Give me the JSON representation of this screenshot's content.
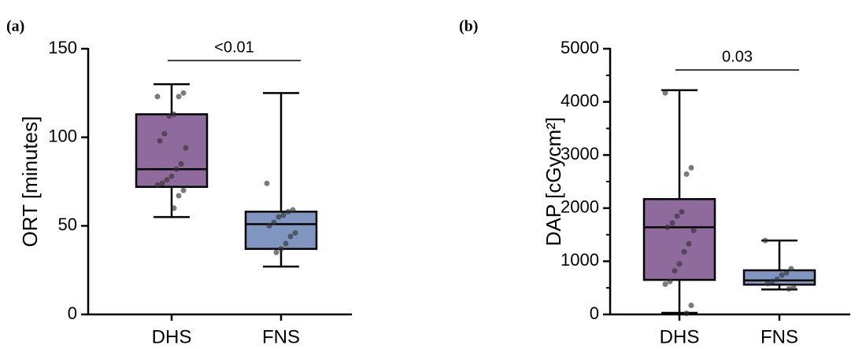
{
  "chart_data": [
    {
      "type": "box",
      "panel_label": "(a)",
      "ylabel": "ORT [minutes]",
      "annotation": "<0.01",
      "categories": [
        "DHS",
        "FNS"
      ],
      "boxes": [
        {
          "color": "#8f6a9c",
          "min": 55,
          "q1": 72,
          "median": 82,
          "q3": 113,
          "max": 130,
          "points": [
            123,
            125,
            123,
            113,
            112,
            102,
            98,
            94,
            85,
            82,
            78,
            76,
            74,
            73,
            70,
            67,
            60
          ]
        },
        {
          "color": "#7f97c0",
          "min": 27,
          "q1": 37,
          "median": 51,
          "q3": 58,
          "max": 125,
          "points": [
            74,
            59,
            58,
            56,
            55,
            52,
            50,
            46,
            44,
            40,
            37,
            35
          ]
        }
      ],
      "ylim": [
        0,
        150
      ],
      "yticks": [
        0,
        50,
        100,
        150
      ]
    },
    {
      "type": "box",
      "panel_label": "(b)",
      "ylabel": "DAP [cGycm²]",
      "annotation": "0.03",
      "categories": [
        "DHS",
        "FNS"
      ],
      "boxes": [
        {
          "color": "#8f6a9c",
          "min": 30,
          "q1": 650,
          "median": 1640,
          "q3": 2170,
          "max": 4220,
          "points": [
            4170,
            2760,
            2640,
            1930,
            1850,
            1720,
            1640,
            1580,
            1330,
            1180,
            950,
            820,
            620,
            570,
            170,
            20
          ]
        },
        {
          "color": "#7f97c0",
          "min": 470,
          "q1": 560,
          "median": 640,
          "q3": 830,
          "max": 1390,
          "points": [
            1390,
            860,
            780,
            740,
            660,
            620,
            580,
            510,
            480
          ]
        }
      ],
      "ylim": [
        0,
        5000
      ],
      "yticks": [
        0,
        1000,
        2000,
        3000,
        4000,
        5000
      ],
      "yminorticks": [
        500,
        1500,
        2500,
        3500,
        4500
      ]
    }
  ]
}
